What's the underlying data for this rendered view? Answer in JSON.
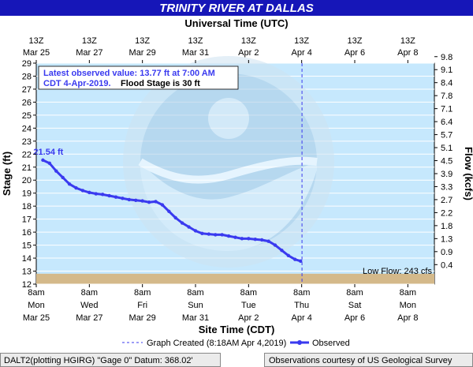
{
  "title": "TRINITY RIVER AT DALLAS",
  "top_axis_title": "Universal Time (UTC)",
  "bottom_axis_title": "Site Time (CDT)",
  "left_axis_title": "Stage (ft)",
  "right_axis_title": "Flow (kcfs)",
  "info_box": {
    "line1": "Latest observed value: 13.77 ft at 7:00 AM",
    "line2": "CDT 4-Apr-2019.",
    "line2b": "Flood Stage is 30 ft"
  },
  "peak_label": "21.54 ft",
  "low_flow_label": "Low Flow: 243 cfs",
  "footer_left": "DALT2(plotting HGIRG) \"Gage 0\" Datum: 368.02'",
  "footer_right": "Observations courtesy of US Geological Survey",
  "colors": {
    "title_bar": "#1616b8",
    "series": "#3a3aef",
    "plot_bg": "#c6e8fd",
    "low_band": "#d4b98a",
    "footer_bg": "#ebebeb"
  },
  "chart_data": {
    "type": "line",
    "ylim": [
      12,
      29
    ],
    "y_ticks": [
      12,
      13,
      14,
      15,
      16,
      17,
      18,
      19,
      20,
      21,
      22,
      23,
      24,
      25,
      26,
      27,
      28,
      29
    ],
    "right_ticks": [
      "0.4",
      "0.9",
      "1.3",
      "1.8",
      "2.2",
      "2.7",
      "3.3",
      "3.9",
      "4.5",
      "5.1",
      "5.7",
      "6.4",
      "7.1",
      "7.8",
      "8.4",
      "9.1",
      "9.8"
    ],
    "x_range": [
      "2019-03-25T08:00",
      "2019-04-09T08:00"
    ],
    "bottom_ticks": [
      {
        "d1": "8am",
        "d2": "Mon",
        "d3": "Mar 25"
      },
      {
        "d1": "8am",
        "d2": "Wed",
        "d3": "Mar 27"
      },
      {
        "d1": "8am",
        "d2": "Fri",
        "d3": "Mar 29"
      },
      {
        "d1": "8am",
        "d2": "Sun",
        "d3": "Mar 31"
      },
      {
        "d1": "8am",
        "d2": "Tue",
        "d3": "Apr 2"
      },
      {
        "d1": "8am",
        "d2": "Thu",
        "d3": "Apr 4"
      },
      {
        "d1": "8am",
        "d2": "Sat",
        "d3": "Apr 6"
      },
      {
        "d1": "8am",
        "d2": "Mon",
        "d3": "Apr 8"
      }
    ],
    "top_ticks": [
      {
        "d1": "13Z",
        "d2": "Mar 25"
      },
      {
        "d1": "13Z",
        "d2": "Mar 27"
      },
      {
        "d1": "13Z",
        "d2": "Mar 29"
      },
      {
        "d1": "13Z",
        "d2": "Mar 31"
      },
      {
        "d1": "13Z",
        "d2": "Apr 2"
      },
      {
        "d1": "13Z",
        "d2": "Apr 4"
      },
      {
        "d1": "13Z",
        "d2": "Apr 6"
      },
      {
        "d1": "13Z",
        "d2": "Apr 8"
      }
    ],
    "low_flow_stage": 12.8,
    "graph_created": "2019-04-04T08:18",
    "series": [
      {
        "name": "Observed",
        "x": [
          "2019-03-25T14:00",
          "2019-03-25T20:00",
          "2019-03-26T02:00",
          "2019-03-26T08:00",
          "2019-03-26T14:00",
          "2019-03-26T20:00",
          "2019-03-27T02:00",
          "2019-03-27T08:00",
          "2019-03-27T14:00",
          "2019-03-27T20:00",
          "2019-03-28T02:00",
          "2019-03-28T08:00",
          "2019-03-28T14:00",
          "2019-03-28T20:00",
          "2019-03-29T02:00",
          "2019-03-29T08:00",
          "2019-03-29T14:00",
          "2019-03-29T20:00",
          "2019-03-30T02:00",
          "2019-03-30T08:00",
          "2019-03-30T14:00",
          "2019-03-30T20:00",
          "2019-03-31T02:00",
          "2019-03-31T08:00",
          "2019-03-31T14:00",
          "2019-03-31T20:00",
          "2019-04-01T02:00",
          "2019-04-01T08:00",
          "2019-04-01T14:00",
          "2019-04-01T20:00",
          "2019-04-02T02:00",
          "2019-04-02T08:00",
          "2019-04-02T14:00",
          "2019-04-02T20:00",
          "2019-04-03T02:00",
          "2019-04-03T08:00",
          "2019-04-03T14:00",
          "2019-04-03T20:00",
          "2019-04-04T02:00",
          "2019-04-04T07:00"
        ],
        "y": [
          21.54,
          21.3,
          20.7,
          20.2,
          19.7,
          19.4,
          19.2,
          19.05,
          18.95,
          18.9,
          18.8,
          18.7,
          18.6,
          18.5,
          18.45,
          18.4,
          18.3,
          18.35,
          18.1,
          17.6,
          17.1,
          16.7,
          16.4,
          16.1,
          15.9,
          15.85,
          15.8,
          15.8,
          15.7,
          15.6,
          15.5,
          15.5,
          15.45,
          15.4,
          15.3,
          15.0,
          14.6,
          14.2,
          13.9,
          13.77
        ]
      }
    ]
  },
  "legend": {
    "graph_created_label": "Graph Created (8:18AM Apr 4,2019)",
    "observed_label": "Observed"
  }
}
